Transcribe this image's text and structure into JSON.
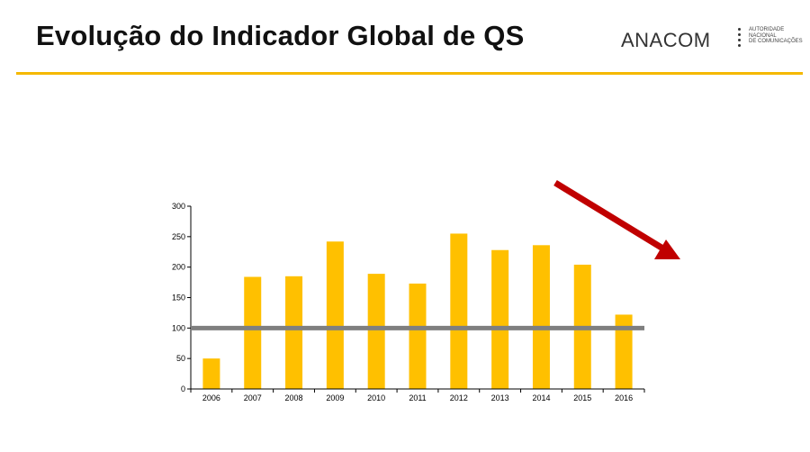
{
  "header": {
    "title": "Evolução do Indicador Global de QS",
    "logo_text": "ANACOM",
    "logo_sub": [
      "Autoridade",
      "Nacional",
      "de Comunicações"
    ]
  },
  "colors": {
    "bar": "#ffc000",
    "reference_line": "#7f7f7f",
    "arrow": "#c00000",
    "header_rule": "#f5b800"
  },
  "chart_data": {
    "type": "bar",
    "categories": [
      "2006",
      "2007",
      "2008",
      "2009",
      "2010",
      "2011",
      "2012",
      "2013",
      "2014",
      "2015",
      "2016"
    ],
    "values": [
      50,
      184,
      185,
      242,
      189,
      173,
      255,
      228,
      236,
      204,
      122
    ],
    "ylim": [
      0,
      300
    ],
    "yticks": [
      0,
      50,
      100,
      150,
      200,
      250,
      300
    ],
    "reference_line": 100,
    "trend_arrow": "decreasing",
    "grid": false,
    "legend": "none"
  }
}
